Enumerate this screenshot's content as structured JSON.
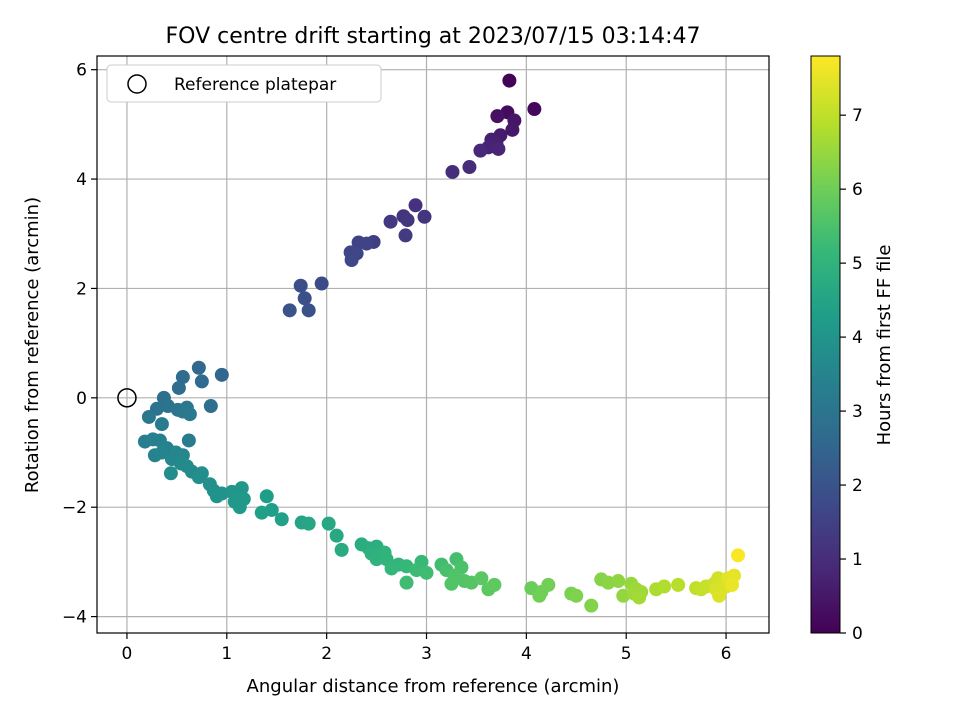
{
  "chart_data": {
    "type": "scatter",
    "title": "FOV centre drift starting at 2023/07/15 03:14:47",
    "xlabel": "Angular distance from reference (arcmin)",
    "ylabel": "Rotation from reference (arcmin)",
    "xlim": [
      -0.3,
      6.43
    ],
    "ylim": [
      -4.3,
      6.25
    ],
    "xticks": [
      0,
      1,
      2,
      3,
      4,
      5,
      6
    ],
    "yticks": [
      -4,
      -2,
      0,
      2,
      4,
      6
    ],
    "grid": true,
    "legend": {
      "position": "top-left",
      "entries": [
        {
          "label": "Reference platepar",
          "marker": "open-circle"
        }
      ]
    },
    "reference_point": {
      "x": 0,
      "y": 0
    },
    "colorbar": {
      "label": "Hours from first FF file",
      "range": [
        0,
        7.8
      ],
      "ticks": [
        0,
        1,
        2,
        3,
        4,
        5,
        6,
        7
      ],
      "colormap": "viridis"
    },
    "series": [
      {
        "color_by": "hours",
        "points": [
          {
            "x": 3.83,
            "y": 5.8,
            "c": 0.05
          },
          {
            "x": 4.08,
            "y": 5.28,
            "c": 0.15
          },
          {
            "x": 3.81,
            "y": 5.22,
            "c": 0.25
          },
          {
            "x": 3.71,
            "y": 5.15,
            "c": 0.35
          },
          {
            "x": 3.88,
            "y": 5.07,
            "c": 0.45
          },
          {
            "x": 3.86,
            "y": 4.9,
            "c": 0.5
          },
          {
            "x": 3.74,
            "y": 4.8,
            "c": 0.6
          },
          {
            "x": 3.65,
            "y": 4.72,
            "c": 0.65
          },
          {
            "x": 3.7,
            "y": 4.65,
            "c": 0.7
          },
          {
            "x": 3.62,
            "y": 4.58,
            "c": 0.75
          },
          {
            "x": 3.72,
            "y": 4.55,
            "c": 0.8
          },
          {
            "x": 3.54,
            "y": 4.52,
            "c": 0.85
          },
          {
            "x": 3.43,
            "y": 4.22,
            "c": 0.95
          },
          {
            "x": 3.26,
            "y": 4.13,
            "c": 1.0
          },
          {
            "x": 2.89,
            "y": 3.52,
            "c": 1.1
          },
          {
            "x": 2.77,
            "y": 3.32,
            "c": 1.15
          },
          {
            "x": 2.98,
            "y": 3.31,
            "c": 1.2
          },
          {
            "x": 2.81,
            "y": 3.25,
            "c": 1.25
          },
          {
            "x": 2.64,
            "y": 3.22,
            "c": 1.3
          },
          {
            "x": 2.79,
            "y": 2.97,
            "c": 1.35
          },
          {
            "x": 2.47,
            "y": 2.85,
            "c": 1.45
          },
          {
            "x": 2.32,
            "y": 2.84,
            "c": 1.5
          },
          {
            "x": 2.4,
            "y": 2.82,
            "c": 1.55
          },
          {
            "x": 2.24,
            "y": 2.66,
            "c": 1.6
          },
          {
            "x": 2.3,
            "y": 2.64,
            "c": 1.65
          },
          {
            "x": 2.25,
            "y": 2.52,
            "c": 1.7
          },
          {
            "x": 1.95,
            "y": 2.09,
            "c": 1.8
          },
          {
            "x": 1.74,
            "y": 2.05,
            "c": 1.85
          },
          {
            "x": 1.78,
            "y": 1.82,
            "c": 1.9
          },
          {
            "x": 1.82,
            "y": 1.6,
            "c": 1.95
          },
          {
            "x": 1.63,
            "y": 1.6,
            "c": 2.0
          },
          {
            "x": 0.95,
            "y": 0.42,
            "c": 2.55
          },
          {
            "x": 0.72,
            "y": 0.55,
            "c": 2.6
          },
          {
            "x": 0.75,
            "y": 0.3,
            "c": 2.65
          },
          {
            "x": 0.56,
            "y": 0.38,
            "c": 2.7
          },
          {
            "x": 0.52,
            "y": 0.18,
            "c": 2.75
          },
          {
            "x": 0.84,
            "y": -0.15,
            "c": 2.8
          },
          {
            "x": 0.37,
            "y": 0.0,
            "c": 2.85
          },
          {
            "x": 0.3,
            "y": -0.2,
            "c": 2.9
          },
          {
            "x": 0.41,
            "y": -0.15,
            "c": 2.95
          },
          {
            "x": 0.51,
            "y": -0.22,
            "c": 3.0
          },
          {
            "x": 0.6,
            "y": -0.18,
            "c": 3.05
          },
          {
            "x": 0.56,
            "y": -0.25,
            "c": 3.1
          },
          {
            "x": 0.22,
            "y": -0.35,
            "c": 3.1
          },
          {
            "x": 0.63,
            "y": -0.3,
            "c": 3.15
          },
          {
            "x": 0.35,
            "y": -0.48,
            "c": 3.2
          },
          {
            "x": 0.62,
            "y": -0.78,
            "c": 3.25
          },
          {
            "x": 0.18,
            "y": -0.8,
            "c": 3.3
          },
          {
            "x": 0.26,
            "y": -0.76,
            "c": 3.35
          },
          {
            "x": 0.33,
            "y": -0.78,
            "c": 3.35
          },
          {
            "x": 0.4,
            "y": -0.92,
            "c": 3.4
          },
          {
            "x": 0.28,
            "y": -1.05,
            "c": 3.45
          },
          {
            "x": 0.35,
            "y": -1.0,
            "c": 3.5
          },
          {
            "x": 0.49,
            "y": -1.0,
            "c": 3.55
          },
          {
            "x": 0.45,
            "y": -1.12,
            "c": 3.6
          },
          {
            "x": 0.56,
            "y": -1.05,
            "c": 3.6
          },
          {
            "x": 0.54,
            "y": -1.2,
            "c": 3.65
          },
          {
            "x": 0.6,
            "y": -1.25,
            "c": 3.7
          },
          {
            "x": 0.65,
            "y": -1.35,
            "c": 3.7
          },
          {
            "x": 0.44,
            "y": -1.38,
            "c": 3.75
          },
          {
            "x": 0.75,
            "y": -1.38,
            "c": 3.8
          },
          {
            "x": 0.72,
            "y": -1.45,
            "c": 3.8
          },
          {
            "x": 0.83,
            "y": -1.58,
            "c": 3.85
          },
          {
            "x": 0.87,
            "y": -1.7,
            "c": 3.9
          },
          {
            "x": 0.95,
            "y": -1.75,
            "c": 3.95
          },
          {
            "x": 0.9,
            "y": -1.8,
            "c": 3.95
          },
          {
            "x": 1.05,
            "y": -1.72,
            "c": 4.0
          },
          {
            "x": 1.15,
            "y": -1.65,
            "c": 4.05
          },
          {
            "x": 1.1,
            "y": -1.8,
            "c": 4.05
          },
          {
            "x": 1.17,
            "y": -1.85,
            "c": 4.1
          },
          {
            "x": 1.08,
            "y": -1.9,
            "c": 4.1
          },
          {
            "x": 1.13,
            "y": -2.0,
            "c": 4.15
          },
          {
            "x": 1.4,
            "y": -1.8,
            "c": 4.25
          },
          {
            "x": 1.45,
            "y": -2.05,
            "c": 4.3
          },
          {
            "x": 1.35,
            "y": -2.1,
            "c": 4.35
          },
          {
            "x": 1.55,
            "y": -2.22,
            "c": 4.4
          },
          {
            "x": 1.75,
            "y": -2.28,
            "c": 4.5
          },
          {
            "x": 1.82,
            "y": -2.3,
            "c": 4.55
          },
          {
            "x": 2.02,
            "y": -2.3,
            "c": 4.6
          },
          {
            "x": 2.1,
            "y": -2.52,
            "c": 4.65
          },
          {
            "x": 2.15,
            "y": -2.78,
            "c": 4.7
          },
          {
            "x": 2.35,
            "y": -2.68,
            "c": 4.75
          },
          {
            "x": 2.42,
            "y": -2.75,
            "c": 4.8
          },
          {
            "x": 2.5,
            "y": -2.72,
            "c": 4.85
          },
          {
            "x": 2.45,
            "y": -2.85,
            "c": 4.9
          },
          {
            "x": 2.58,
            "y": -2.83,
            "c": 4.95
          },
          {
            "x": 2.5,
            "y": -2.95,
            "c": 4.95
          },
          {
            "x": 2.6,
            "y": -2.95,
            "c": 5.0
          },
          {
            "x": 2.72,
            "y": -3.05,
            "c": 5.05
          },
          {
            "x": 2.65,
            "y": -3.12,
            "c": 5.1
          },
          {
            "x": 2.8,
            "y": -3.08,
            "c": 5.15
          },
          {
            "x": 2.95,
            "y": -3.0,
            "c": 5.2
          },
          {
            "x": 2.9,
            "y": -3.15,
            "c": 5.25
          },
          {
            "x": 3.0,
            "y": -3.2,
            "c": 5.3
          },
          {
            "x": 2.8,
            "y": -3.38,
            "c": 5.3
          },
          {
            "x": 3.15,
            "y": -3.05,
            "c": 5.35
          },
          {
            "x": 3.3,
            "y": -2.95,
            "c": 5.4
          },
          {
            "x": 3.2,
            "y": -3.15,
            "c": 5.45
          },
          {
            "x": 3.35,
            "y": -3.1,
            "c": 5.5
          },
          {
            "x": 3.28,
            "y": -3.25,
            "c": 5.55
          },
          {
            "x": 3.38,
            "y": -3.35,
            "c": 5.6
          },
          {
            "x": 3.25,
            "y": -3.4,
            "c": 5.6
          },
          {
            "x": 3.45,
            "y": -3.38,
            "c": 5.65
          },
          {
            "x": 3.55,
            "y": -3.3,
            "c": 5.7
          },
          {
            "x": 3.62,
            "y": -3.5,
            "c": 5.75
          },
          {
            "x": 3.68,
            "y": -3.42,
            "c": 5.8
          },
          {
            "x": 4.05,
            "y": -3.48,
            "c": 5.95
          },
          {
            "x": 4.15,
            "y": -3.55,
            "c": 6.0
          },
          {
            "x": 4.22,
            "y": -3.42,
            "c": 6.05
          },
          {
            "x": 4.13,
            "y": -3.62,
            "c": 6.05
          },
          {
            "x": 4.45,
            "y": -3.58,
            "c": 6.15
          },
          {
            "x": 4.5,
            "y": -3.62,
            "c": 6.2
          },
          {
            "x": 4.65,
            "y": -3.8,
            "c": 6.25
          },
          {
            "x": 4.75,
            "y": -3.32,
            "c": 6.3
          },
          {
            "x": 4.82,
            "y": -3.38,
            "c": 6.35
          },
          {
            "x": 4.92,
            "y": -3.35,
            "c": 6.4
          },
          {
            "x": 4.97,
            "y": -3.62,
            "c": 6.45
          },
          {
            "x": 5.05,
            "y": -3.4,
            "c": 6.5
          },
          {
            "x": 5.1,
            "y": -3.5,
            "c": 6.55
          },
          {
            "x": 5.15,
            "y": -3.55,
            "c": 6.6
          },
          {
            "x": 5.08,
            "y": -3.58,
            "c": 6.6
          },
          {
            "x": 5.13,
            "y": -3.65,
            "c": 6.65
          },
          {
            "x": 5.3,
            "y": -3.5,
            "c": 6.75
          },
          {
            "x": 5.38,
            "y": -3.45,
            "c": 6.8
          },
          {
            "x": 5.52,
            "y": -3.42,
            "c": 6.9
          },
          {
            "x": 5.7,
            "y": -3.48,
            "c": 7.0
          },
          {
            "x": 5.75,
            "y": -3.5,
            "c": 7.05
          },
          {
            "x": 5.8,
            "y": -3.45,
            "c": 7.1
          },
          {
            "x": 5.88,
            "y": -3.4,
            "c": 7.15
          },
          {
            "x": 5.92,
            "y": -3.3,
            "c": 7.2
          },
          {
            "x": 5.96,
            "y": -3.38,
            "c": 7.25
          },
          {
            "x": 5.9,
            "y": -3.5,
            "c": 7.3
          },
          {
            "x": 6.0,
            "y": -3.45,
            "c": 7.35
          },
          {
            "x": 5.93,
            "y": -3.62,
            "c": 7.35
          },
          {
            "x": 6.02,
            "y": -3.3,
            "c": 7.45
          },
          {
            "x": 6.08,
            "y": -3.25,
            "c": 7.5
          },
          {
            "x": 6.06,
            "y": -3.42,
            "c": 7.55
          },
          {
            "x": 6.12,
            "y": -2.88,
            "c": 7.75
          }
        ]
      }
    ]
  }
}
